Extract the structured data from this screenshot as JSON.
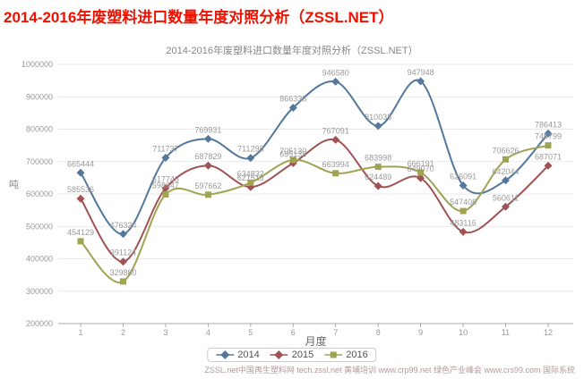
{
  "page": {
    "main_title": "2014-2016年废塑料进口数量年度对照分析（ZSSL.NET）",
    "title_color": "#ee1100",
    "footer": "ZSSL.net中国再生塑料网 tech.zssl.net 黄埔培训 www.crp99.net 绿色产业峰会 www.crs99.com 国际系统"
  },
  "chart_data": {
    "type": "line",
    "title": "2014-2016年废塑料进口数量年度对照分析（ZSSL.NET）",
    "xlabel": "月度",
    "ylabel": "吨",
    "x": [
      1,
      2,
      3,
      4,
      5,
      6,
      7,
      8,
      9,
      10,
      11,
      12
    ],
    "ylim": [
      200000,
      1000000
    ],
    "ytick_step": 100000,
    "grid": true,
    "legend_position": "bottom",
    "data_labels": true,
    "series": [
      {
        "name": "2014",
        "color": "#53789c",
        "marker": "diamond",
        "values": [
          665444,
          476324,
          711737,
          769931,
          711298,
          866338,
          946580,
          810038,
          947948,
          626091,
          642044,
          786413
        ]
      },
      {
        "name": "2015",
        "color": "#a05254",
        "marker": "diamond",
        "values": [
          585536,
          391124,
          617746,
          687829,
          621513,
          695139,
          767091,
          624489,
          649070,
          483116,
          560611,
          687071
        ]
      },
      {
        "name": "2016",
        "color": "#a0a352",
        "marker": "square",
        "values": [
          454129,
          329880,
          598647,
          597662,
          634832,
          705130,
          663994,
          683998,
          666191,
          547408,
          706626,
          749799
        ]
      }
    ]
  }
}
